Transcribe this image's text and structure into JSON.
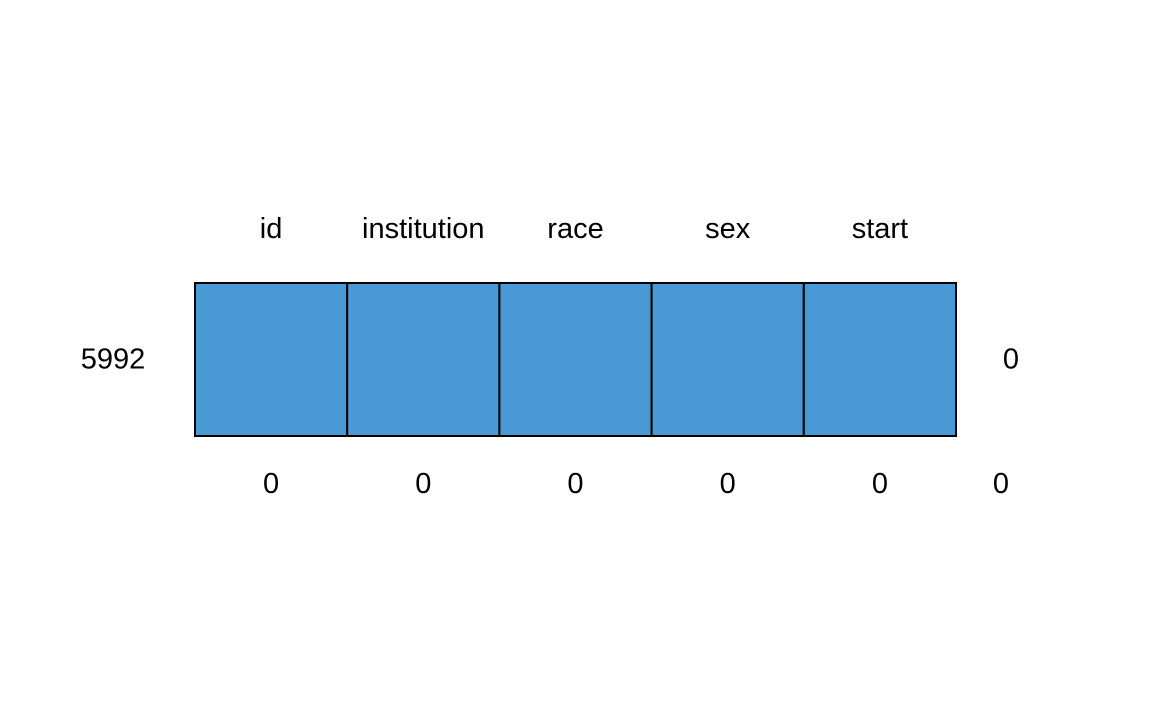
{
  "chart_data": {
    "type": "heatmap",
    "title": "",
    "columns": [
      "id",
      "institution",
      "race",
      "sex",
      "start"
    ],
    "rows": [
      {
        "count": "5992",
        "cells": [
          1,
          1,
          1,
          1,
          1
        ],
        "row_missing_total": "0"
      }
    ],
    "column_missing_counts": [
      "0",
      "0",
      "0",
      "0",
      "0"
    ],
    "total_missing": "0",
    "colors": {
      "observed": "#4A98D4",
      "missing": "#E67B7B",
      "border": "#000000"
    }
  }
}
